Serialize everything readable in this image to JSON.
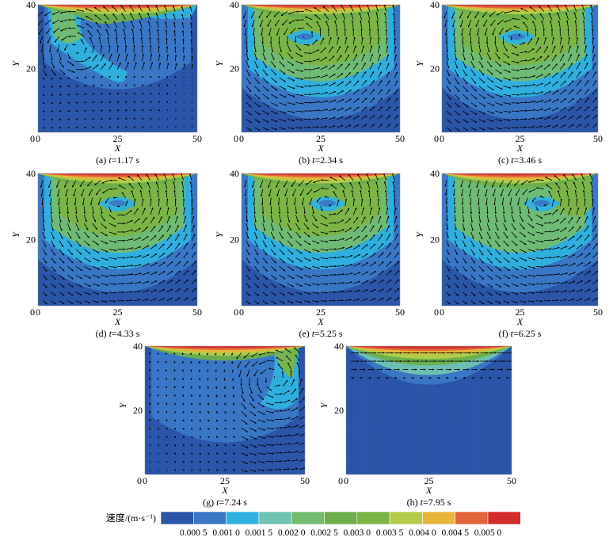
{
  "chart_data": [
    {
      "type": "heatmap",
      "panel": "a",
      "caption_prefix": "(a) ",
      "caption_var": "t",
      "caption_value": "=1.17 s",
      "t": 1.17,
      "xlabel": "X",
      "ylabel": "Y",
      "xlim": [
        0,
        50
      ],
      "ylim": [
        0,
        40
      ],
      "xticks": [
        "0",
        "25",
        "50"
      ],
      "yticks": [
        "20",
        "40"
      ],
      "pattern": "early",
      "vortex": [
        12,
        26
      ]
    },
    {
      "type": "heatmap",
      "panel": "b",
      "caption_prefix": "(b) ",
      "caption_var": "t",
      "caption_value": "=2.34 s",
      "t": 2.34,
      "xlabel": "X",
      "ylabel": "Y",
      "xlim": [
        0,
        50
      ],
      "ylim": [
        0,
        40
      ],
      "xticks": [
        "0",
        "25",
        "50"
      ],
      "yticks": [
        "20",
        "40"
      ],
      "pattern": "full",
      "vortex": [
        20,
        30
      ]
    },
    {
      "type": "heatmap",
      "panel": "c",
      "caption_prefix": "(c) ",
      "caption_var": "t",
      "caption_value": "=3.46 s",
      "t": 3.46,
      "xlabel": "X",
      "ylabel": "Y",
      "xlim": [
        0,
        50
      ],
      "ylim": [
        0,
        40
      ],
      "xticks": [
        "0",
        "25",
        "50"
      ],
      "yticks": [
        "20",
        "40"
      ],
      "pattern": "full",
      "vortex": [
        24,
        30
      ]
    },
    {
      "type": "heatmap",
      "panel": "d",
      "caption_prefix": "(d) ",
      "caption_var": "t",
      "caption_value": "=4.33 s",
      "t": 4.33,
      "xlabel": "X",
      "ylabel": "Y",
      "xlim": [
        0,
        50
      ],
      "ylim": [
        0,
        40
      ],
      "xticks": [
        "0",
        "25",
        "50"
      ],
      "yticks": [
        "20",
        "40"
      ],
      "pattern": "full",
      "vortex": [
        25,
        31
      ]
    },
    {
      "type": "heatmap",
      "panel": "e",
      "caption_prefix": "(e) ",
      "caption_var": "t",
      "caption_value": "=5.25 s",
      "t": 5.25,
      "xlabel": "X",
      "ylabel": "Y",
      "xlim": [
        0,
        50
      ],
      "ylim": [
        0,
        40
      ],
      "xticks": [
        "0",
        "25",
        "50"
      ],
      "yticks": [
        "20",
        "40"
      ],
      "pattern": "full",
      "vortex": [
        27,
        31
      ]
    },
    {
      "type": "heatmap",
      "panel": "f",
      "caption_prefix": "(f) ",
      "caption_var": "t",
      "caption_value": "=6.25 s",
      "t": 6.25,
      "xlabel": "X",
      "ylabel": "Y",
      "xlim": [
        0,
        50
      ],
      "ylim": [
        0,
        40
      ],
      "xticks": [
        "0",
        "25",
        "50"
      ],
      "yticks": [
        "20",
        "40"
      ],
      "pattern": "decay",
      "vortex": [
        32,
        31
      ]
    },
    {
      "type": "heatmap",
      "panel": "g",
      "caption_prefix": "(g) ",
      "caption_var": "t",
      "caption_value": "=7.24 s",
      "t": 7.24,
      "xlabel": "X",
      "ylabel": "Y",
      "xlim": [
        0,
        50
      ],
      "ylim": [
        0,
        40
      ],
      "xticks": [
        "0",
        "25",
        "50"
      ],
      "yticks": [
        "20",
        "40"
      ],
      "pattern": "late",
      "vortex": [
        40,
        30
      ]
    },
    {
      "type": "heatmap",
      "panel": "h",
      "caption_prefix": "(h) ",
      "caption_var": "t",
      "caption_value": "=7.95 s",
      "t": 7.95,
      "xlabel": "X",
      "ylabel": "Y",
      "xlim": [
        0,
        50
      ],
      "ylim": [
        0,
        40
      ],
      "xticks": [
        "0",
        "25",
        "50"
      ],
      "yticks": [
        "20",
        "40"
      ],
      "pattern": "top",
      "vortex": null
    }
  ],
  "colorbar": {
    "label": "速度/(m·s⁻¹)",
    "colors": [
      "#2a55a8",
      "#3a78c6",
      "#2fb2e0",
      "#6fc3b2",
      "#73bb6e",
      "#6dae4a",
      "#7bb445",
      "#b3cd4a",
      "#e8b43a",
      "#e3643b",
      "#d32c2c"
    ],
    "ticks": [
      "0.000 5",
      "0.001 0",
      "0.001 5",
      "0.002 0",
      "0.002 5",
      "0.003 0",
      "0.003 5",
      "0.004 0",
      "0.004 5",
      "0.005 0"
    ]
  }
}
